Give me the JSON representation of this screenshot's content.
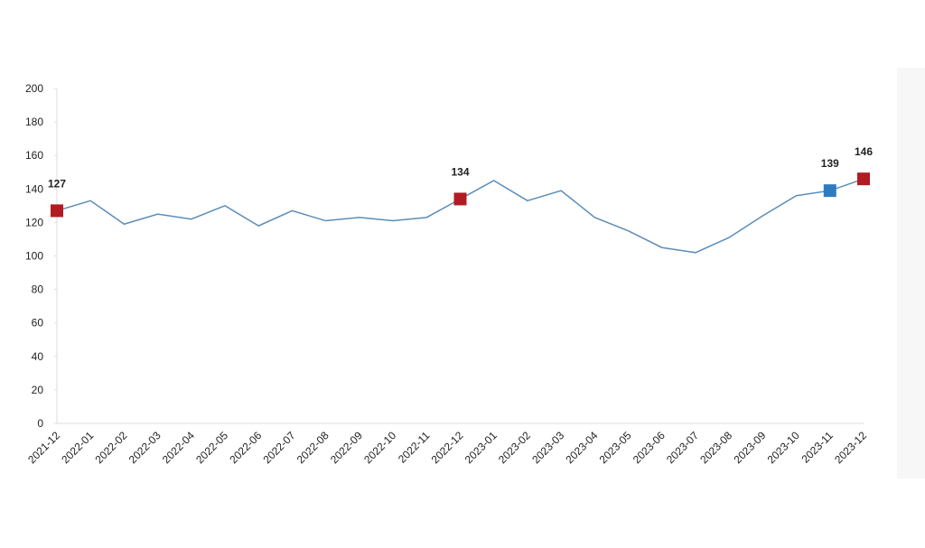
{
  "chart_data": {
    "type": "line",
    "categories": [
      "2021-12",
      "2022-01",
      "2022-02",
      "2022-03",
      "2022-04",
      "2022-05",
      "2022-06",
      "2022-07",
      "2022-08",
      "2022-09",
      "2022-10",
      "2022-11",
      "2022-12",
      "2023-01",
      "2023-02",
      "2023-03",
      "2023-04",
      "2023-05",
      "2023-06",
      "2023-07",
      "2023-08",
      "2023-09",
      "2023-10",
      "2023-11",
      "2023-12"
    ],
    "series": [
      {
        "color": "#5b8db8",
        "values": [
          127,
          133,
          119,
          125,
          122,
          130,
          118,
          127,
          121,
          123,
          121,
          123,
          134,
          145,
          133,
          139,
          123,
          115,
          105,
          102,
          111,
          124,
          136,
          139,
          146
        ],
        "marker_colors": [
          "#b01c22",
          null,
          null,
          null,
          null,
          null,
          null,
          null,
          null,
          null,
          null,
          null,
          "#b01c22",
          null,
          null,
          null,
          null,
          null,
          null,
          null,
          null,
          null,
          null,
          "#2e7cc0",
          "#b01c22"
        ]
      }
    ],
    "ylim": [
      0,
      200
    ],
    "yticks": [
      0,
      20,
      40,
      60,
      80,
      100,
      120,
      140,
      160,
      180,
      200
    ]
  }
}
